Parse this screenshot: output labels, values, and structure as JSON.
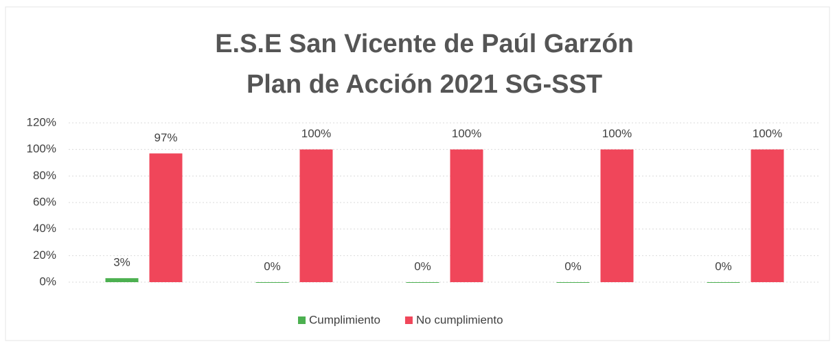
{
  "chart_data": {
    "type": "bar",
    "title": [
      "E.S.E San Vicente de Paúl Garzón",
      "Plan de Acción 2021 SG-SST"
    ],
    "categories": [
      null,
      null,
      null,
      null,
      null
    ],
    "series": [
      {
        "name": "Cumplimiento",
        "color": "#4cb050",
        "values": [
          3,
          0,
          0,
          0,
          0
        ],
        "value_labels": [
          "3%",
          "0%",
          "0%",
          "0%",
          "0%"
        ]
      },
      {
        "name": "No cumplimiento",
        "color": "#f0465a",
        "values": [
          97,
          100,
          100,
          100,
          100
        ],
        "value_labels": [
          "97%",
          "100%",
          "100%",
          "100%",
          "100%"
        ]
      }
    ],
    "ylim": [
      0,
      120
    ],
    "yticks": [
      {
        "value": 0,
        "label": "0%"
      },
      {
        "value": 20,
        "label": "20%"
      },
      {
        "value": 40,
        "label": "40%"
      },
      {
        "value": 60,
        "label": "60%"
      },
      {
        "value": 80,
        "label": "80%"
      },
      {
        "value": 100,
        "label": "100%"
      },
      {
        "value": 120,
        "label": "120%"
      }
    ],
    "grid": true,
    "legend": "bottom"
  }
}
